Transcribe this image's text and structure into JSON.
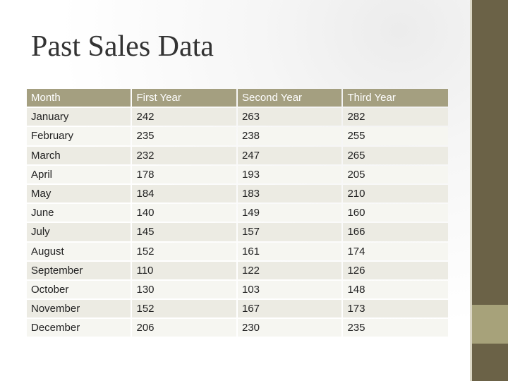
{
  "slide": {
    "title": "Past Sales Data"
  },
  "colors": {
    "header_fill": "#a49f80",
    "row_odd_fill": "#ecebe3",
    "row_even_fill": "#f6f6f1",
    "side_bar": "#6b6247",
    "side_accent": "#a7a27a"
  },
  "table": {
    "headers": [
      "Month",
      "First Year",
      "Second Year",
      "Third Year"
    ],
    "rows": [
      [
        "January",
        "242",
        "263",
        "282"
      ],
      [
        "February",
        "235",
        "238",
        "255"
      ],
      [
        "March",
        "232",
        "247",
        "265"
      ],
      [
        "April",
        "178",
        "193",
        "205"
      ],
      [
        "May",
        "184",
        "183",
        "210"
      ],
      [
        "June",
        "140",
        "149",
        "160"
      ],
      [
        "July",
        "145",
        "157",
        "166"
      ],
      [
        "August",
        "152",
        "161",
        "174"
      ],
      [
        "September",
        "110",
        "122",
        "126"
      ],
      [
        "October",
        "130",
        "103",
        "148"
      ],
      [
        "November",
        "152",
        "167",
        "173"
      ],
      [
        "December",
        "206",
        "230",
        "235"
      ]
    ]
  }
}
